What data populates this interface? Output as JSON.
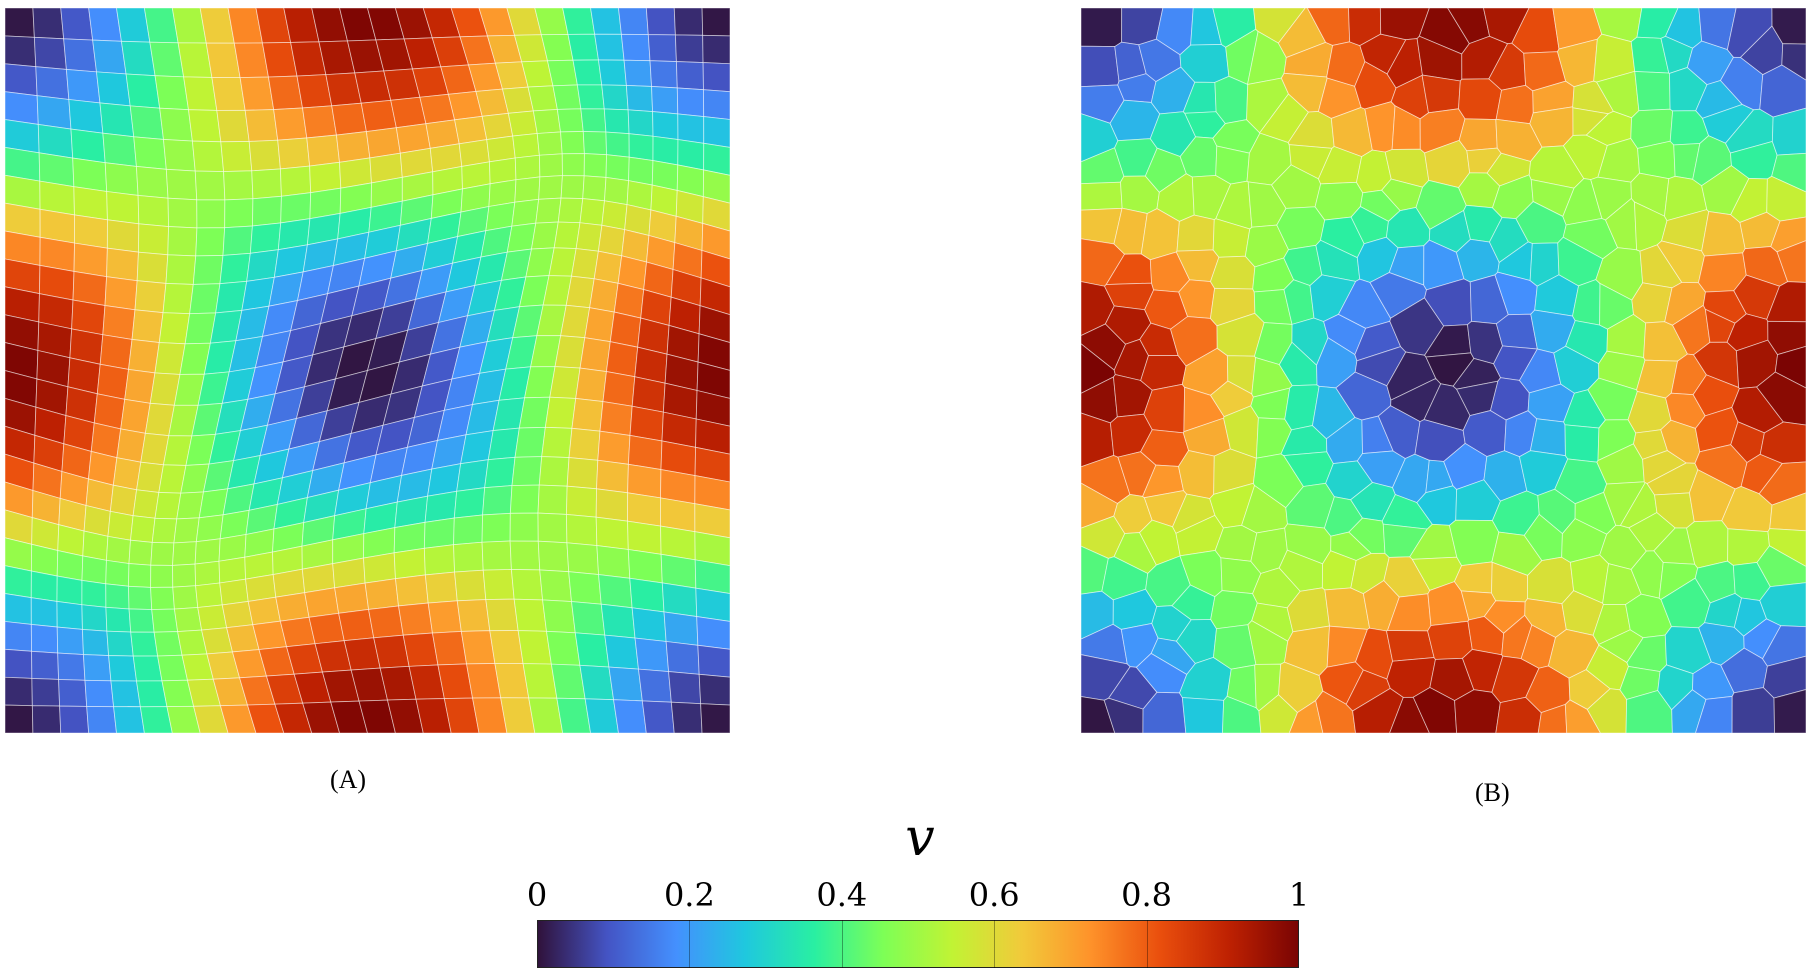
{
  "panels": [
    {
      "id": "A",
      "label": "(A)",
      "mesh": "quadrilateral"
    },
    {
      "id": "B",
      "label": "(B)",
      "mesh": "voronoi"
    }
  ],
  "colorbar": {
    "symbol": "v",
    "ticks": [
      "0",
      "0.2",
      "0.4",
      "0.6",
      "0.8",
      "1"
    ],
    "range": [
      0,
      1
    ],
    "colormap": "turbo",
    "colors": [
      "#30123b",
      "#4454c4",
      "#4490fe",
      "#1fc8de",
      "#29efa2",
      "#7dff56",
      "#c1f334",
      "#f1ca3a",
      "#fe922a",
      "#ea4f0d",
      "#be2102",
      "#7a0403"
    ]
  }
}
